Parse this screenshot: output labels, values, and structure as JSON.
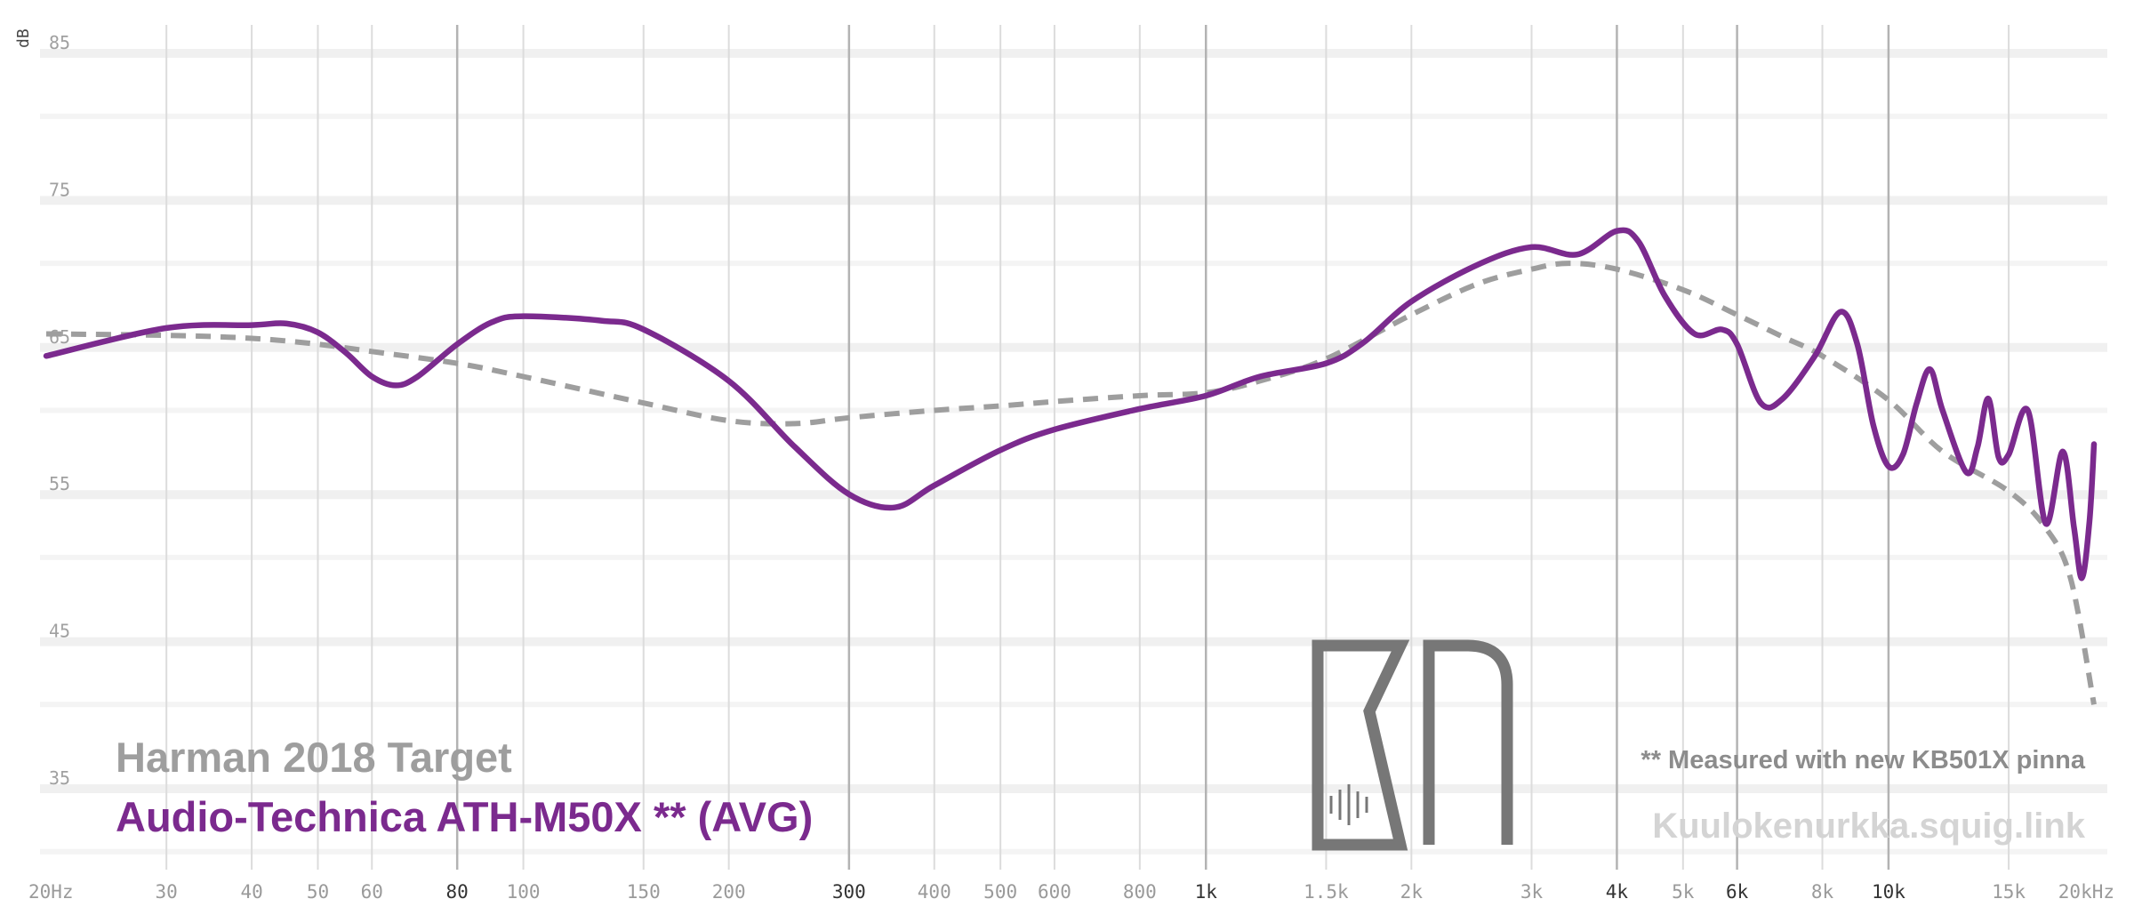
{
  "chart_data": {
    "type": "line",
    "ylabel": "dB",
    "xscale": "log",
    "xlim": [
      20,
      20000
    ],
    "ylim": [
      30,
      87
    ],
    "grid": true,
    "x_ticks": [
      {
        "value": 20,
        "label": "20Hz"
      },
      {
        "value": 30,
        "label": "30"
      },
      {
        "value": 40,
        "label": "40"
      },
      {
        "value": 50,
        "label": "50"
      },
      {
        "value": 60,
        "label": "60"
      },
      {
        "value": 80,
        "label": "80",
        "strong": true
      },
      {
        "value": 100,
        "label": "100"
      },
      {
        "value": 150,
        "label": "150"
      },
      {
        "value": 200,
        "label": "200"
      },
      {
        "value": 300,
        "label": "300",
        "strong": true
      },
      {
        "value": 400,
        "label": "400"
      },
      {
        "value": 500,
        "label": "500"
      },
      {
        "value": 600,
        "label": "600"
      },
      {
        "value": 800,
        "label": "800"
      },
      {
        "value": 1000,
        "label": "1k",
        "strong": true
      },
      {
        "value": 1500,
        "label": "1.5k"
      },
      {
        "value": 2000,
        "label": "2k"
      },
      {
        "value": 3000,
        "label": "3k"
      },
      {
        "value": 4000,
        "label": "4k",
        "strong": true
      },
      {
        "value": 5000,
        "label": "5k"
      },
      {
        "value": 6000,
        "label": "6k",
        "strong": true
      },
      {
        "value": 8000,
        "label": "8k"
      },
      {
        "value": 10000,
        "label": "10k",
        "strong": true
      },
      {
        "value": 15000,
        "label": "15k"
      },
      {
        "value": 20000,
        "label": "20kHz"
      }
    ],
    "y_ticks": [
      35,
      45,
      55,
      65,
      75,
      85
    ],
    "series": [
      {
        "name": "Harman 2018 Target",
        "color": "#9e9e9e",
        "dashed": true,
        "points": [
          [
            20,
            65.2
          ],
          [
            30,
            65.1
          ],
          [
            40,
            64.9
          ],
          [
            50,
            64.5
          ],
          [
            60,
            64.0
          ],
          [
            80,
            63.2
          ],
          [
            100,
            62.3
          ],
          [
            150,
            60.5
          ],
          [
            200,
            59.3
          ],
          [
            250,
            59.1
          ],
          [
            300,
            59.5
          ],
          [
            400,
            60.0
          ],
          [
            500,
            60.3
          ],
          [
            600,
            60.6
          ],
          [
            800,
            61.0
          ],
          [
            1000,
            61.2
          ],
          [
            1200,
            62.0
          ],
          [
            1500,
            63.5
          ],
          [
            2000,
            66.5
          ],
          [
            2500,
            68.6
          ],
          [
            3000,
            69.6
          ],
          [
            3400,
            70.0
          ],
          [
            4000,
            69.6
          ],
          [
            5000,
            68.2
          ],
          [
            6000,
            66.5
          ],
          [
            7000,
            65.0
          ],
          [
            8000,
            63.7
          ],
          [
            10000,
            60.7
          ],
          [
            12000,
            57.2
          ],
          [
            15000,
            54.5
          ],
          [
            17000,
            52.0
          ],
          [
            18500,
            48.5
          ],
          [
            20000,
            40.0
          ]
        ]
      },
      {
        "name": "Audio-Technica ATH-M50X ** (AVG)",
        "color": "#7b2a8e",
        "dashed": false,
        "points": [
          [
            20,
            63.7
          ],
          [
            30,
            65.6
          ],
          [
            40,
            65.8
          ],
          [
            45,
            65.9
          ],
          [
            50,
            65.3
          ],
          [
            55,
            63.9
          ],
          [
            60,
            62.3
          ],
          [
            65,
            61.7
          ],
          [
            70,
            62.3
          ],
          [
            80,
            64.5
          ],
          [
            90,
            66.0
          ],
          [
            100,
            66.4
          ],
          [
            130,
            66.1
          ],
          [
            150,
            65.5
          ],
          [
            200,
            62.0
          ],
          [
            250,
            57.5
          ],
          [
            300,
            54.3
          ],
          [
            350,
            53.4
          ],
          [
            400,
            54.9
          ],
          [
            500,
            57.3
          ],
          [
            600,
            58.7
          ],
          [
            800,
            60.1
          ],
          [
            1000,
            61.0
          ],
          [
            1200,
            62.3
          ],
          [
            1500,
            63.2
          ],
          [
            1700,
            64.6
          ],
          [
            2000,
            67.4
          ],
          [
            2500,
            69.9
          ],
          [
            3000,
            71.1
          ],
          [
            3500,
            70.6
          ],
          [
            4000,
            72.2
          ],
          [
            4300,
            71.5
          ],
          [
            4700,
            67.8
          ],
          [
            5200,
            65.2
          ],
          [
            5700,
            65.5
          ],
          [
            6000,
            64.5
          ],
          [
            6500,
            60.5
          ],
          [
            7000,
            60.8
          ],
          [
            7800,
            63.7
          ],
          [
            8500,
            66.7
          ],
          [
            9000,
            64.5
          ],
          [
            9500,
            59.0
          ],
          [
            10000,
            56.2
          ],
          [
            10500,
            57.0
          ],
          [
            11000,
            60.5
          ],
          [
            11500,
            62.8
          ],
          [
            12000,
            60.0
          ],
          [
            13000,
            55.8
          ],
          [
            13500,
            57.5
          ],
          [
            14000,
            60.8
          ],
          [
            14500,
            56.8
          ],
          [
            15000,
            57.0
          ],
          [
            16000,
            60.0
          ],
          [
            17000,
            52.3
          ],
          [
            18000,
            57.2
          ],
          [
            18700,
            52.0
          ],
          [
            19200,
            48.6
          ],
          [
            19700,
            52.5
          ],
          [
            20000,
            57.7
          ]
        ]
      }
    ],
    "note": "** Measured with new KB501X pinna",
    "watermark": "Kuulokenurkka.squig.link"
  }
}
